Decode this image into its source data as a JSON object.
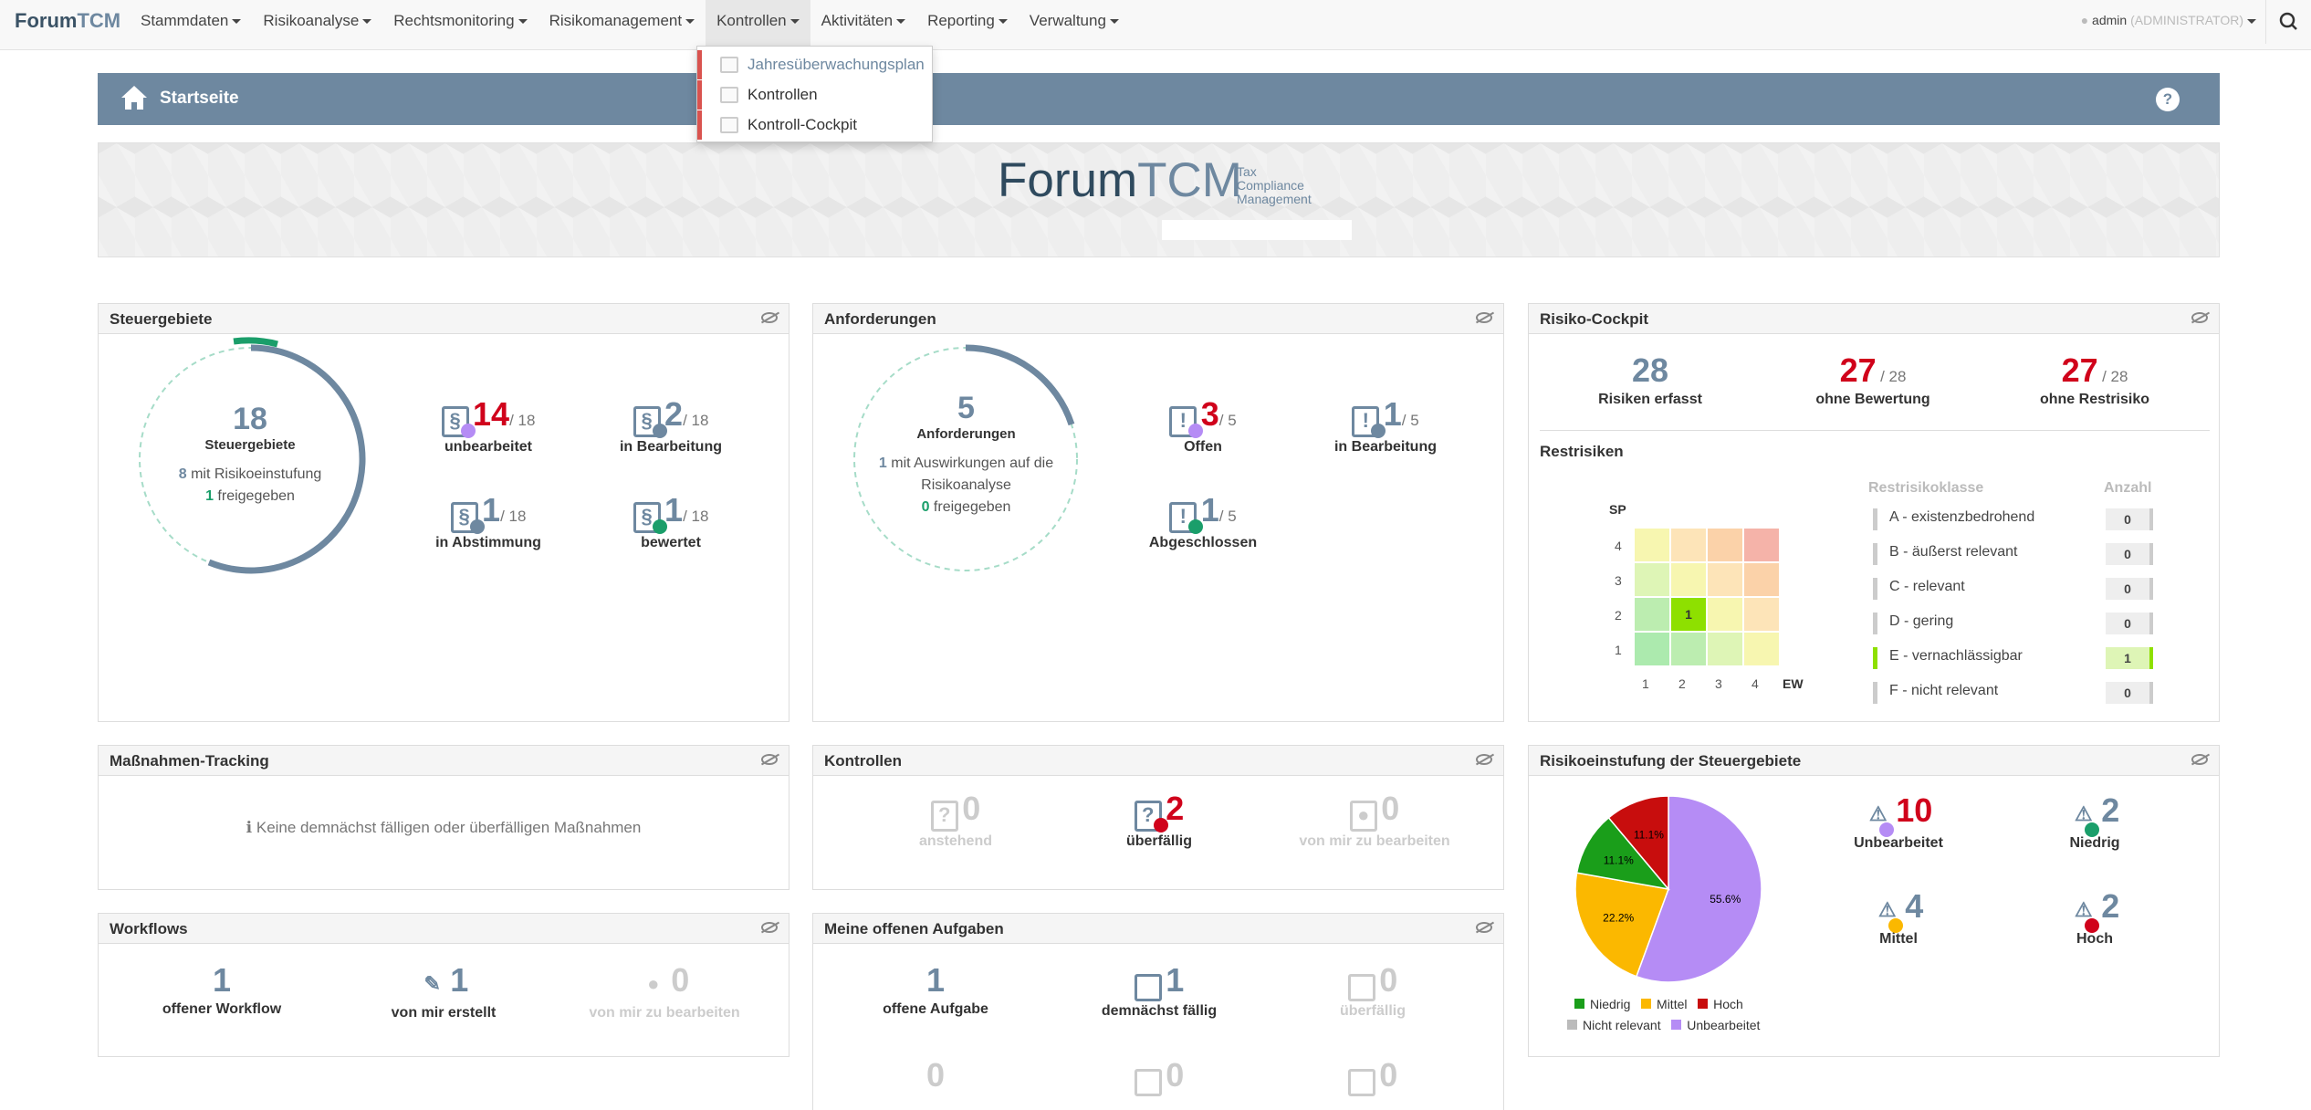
{
  "brand": {
    "part1": "Forum",
    "part2": "TCM"
  },
  "nav": [
    "Stammdaten",
    "Risikoanalyse",
    "Rechtsmonitoring",
    "Risikomanagement",
    "Kontrollen",
    "Aktivitäten",
    "Reporting",
    "Verwaltung"
  ],
  "user": {
    "name": "admin",
    "role": "(ADMINISTRATOR)"
  },
  "dropdown": [
    "Jahresüberwachungsplan",
    "Kontrollen",
    "Kontroll-Cockpit"
  ],
  "page": {
    "title": "Startseite",
    "help": "?"
  },
  "logo": {
    "part1": "Forum",
    "part2": "TCM",
    "sub1": "Tax",
    "sub2": "Compliance",
    "sub3": "Management"
  },
  "steuergebiete": {
    "title": "Steuergebiete",
    "total": "18",
    "label": "Steuergebiete",
    "risk_n": "8",
    "risk_t": "mit Risikoeinstufung",
    "rel_n": "1",
    "rel_t": "freigegeben",
    "stats": [
      {
        "n": "14",
        "of": "/ 18",
        "l": "unbearbeitet"
      },
      {
        "n": "2",
        "of": "/ 18",
        "l": "in Bearbeitung"
      },
      {
        "n": "1",
        "of": "/ 18",
        "l": "in Abstimmung"
      },
      {
        "n": "1",
        "of": "/ 18",
        "l": "bewertet"
      }
    ]
  },
  "anforderungen": {
    "title": "Anforderungen",
    "total": "5",
    "label": "Anforderungen",
    "imp_n": "1",
    "imp_t": "mit Auswirkungen auf die",
    "imp_t2": "Risikoanalyse",
    "rel_n": "0",
    "rel_t": "freigegeben",
    "stats": [
      {
        "n": "3",
        "of": "/ 5",
        "l": "Offen"
      },
      {
        "n": "1",
        "of": "/ 5",
        "l": "in Bearbeitung"
      },
      {
        "n": "1",
        "of": "/ 5",
        "l": "Abgeschlossen"
      }
    ]
  },
  "cockpit": {
    "title": "Risiko-Cockpit",
    "top": [
      {
        "n": "28",
        "of": "",
        "l": "Risiken erfasst"
      },
      {
        "n": "27",
        "of": "/ 28",
        "l": "ohne Bewertung"
      },
      {
        "n": "27",
        "of": "/ 28",
        "l": "ohne Restrisiko"
      }
    ],
    "rest_title": "Restrisiken",
    "sp": "SP",
    "ew": "EW",
    "ylabels": [
      "4",
      "3",
      "2",
      "1"
    ],
    "xlabels": [
      "1",
      "2",
      "3",
      "4"
    ],
    "cell_value": "1",
    "class_h": "Restrisikoklasse",
    "count_h": "Anzahl",
    "classes": [
      {
        "t": "A - existenzbedrohend",
        "n": "0"
      },
      {
        "t": "B - äußerst relevant",
        "n": "0"
      },
      {
        "t": "C - relevant",
        "n": "0"
      },
      {
        "t": "D - gering",
        "n": "0"
      },
      {
        "t": "E - vernachlässigbar",
        "n": "1"
      },
      {
        "t": "F - nicht relevant",
        "n": "0"
      }
    ]
  },
  "massnahmen": {
    "title": "Maßnahmen-Tracking",
    "empty": "Keine demnächst fälligen oder überfälligen Maßnahmen"
  },
  "kontrollen": {
    "title": "Kontrollen",
    "stats": [
      {
        "n": "0",
        "l": "anstehend"
      },
      {
        "n": "2",
        "l": "überfällig"
      },
      {
        "n": "0",
        "l": "von mir zu bearbeiten"
      }
    ]
  },
  "risikoeinstufung": {
    "title": "Risikoeinstufung der Steuergebiete",
    "pie": [
      {
        "name": "Unbearbeitet",
        "pct": 55.6,
        "color": "#b58cf5"
      },
      {
        "name": "Mittel",
        "pct": 22.2,
        "color": "#fbb800"
      },
      {
        "name": "Niedrig",
        "pct": 11.1,
        "color": "#1a9e1a"
      },
      {
        "name": "Hoch",
        "pct": 11.1,
        "color": "#c80d0d"
      }
    ],
    "pie_labels": [
      "55.6%",
      "22.2%",
      "11.1%",
      "11.1%"
    ],
    "legend": [
      "Niedrig",
      "Mittel",
      "Hoch",
      "Nicht relevant",
      "Unbearbeitet"
    ],
    "stats": [
      {
        "n": "10",
        "l": "Unbearbeitet"
      },
      {
        "n": "2",
        "l": "Niedrig"
      },
      {
        "n": "4",
        "l": "Mittel"
      },
      {
        "n": "2",
        "l": "Hoch"
      }
    ]
  },
  "workflows": {
    "title": "Workflows",
    "stats": [
      {
        "n": "1",
        "l": "offener Workflow"
      },
      {
        "n": "1",
        "l": "von mir erstellt"
      },
      {
        "n": "0",
        "l": "von mir zu bearbeiten"
      }
    ]
  },
  "aufgaben": {
    "title": "Meine offenen Aufgaben",
    "stats": [
      {
        "n": "1",
        "l": "offene Aufgabe"
      },
      {
        "n": "1",
        "l": "demnächst fällig"
      },
      {
        "n": "0",
        "l": "überfällig"
      }
    ],
    "row2": [
      "0",
      "0",
      "0"
    ]
  }
}
